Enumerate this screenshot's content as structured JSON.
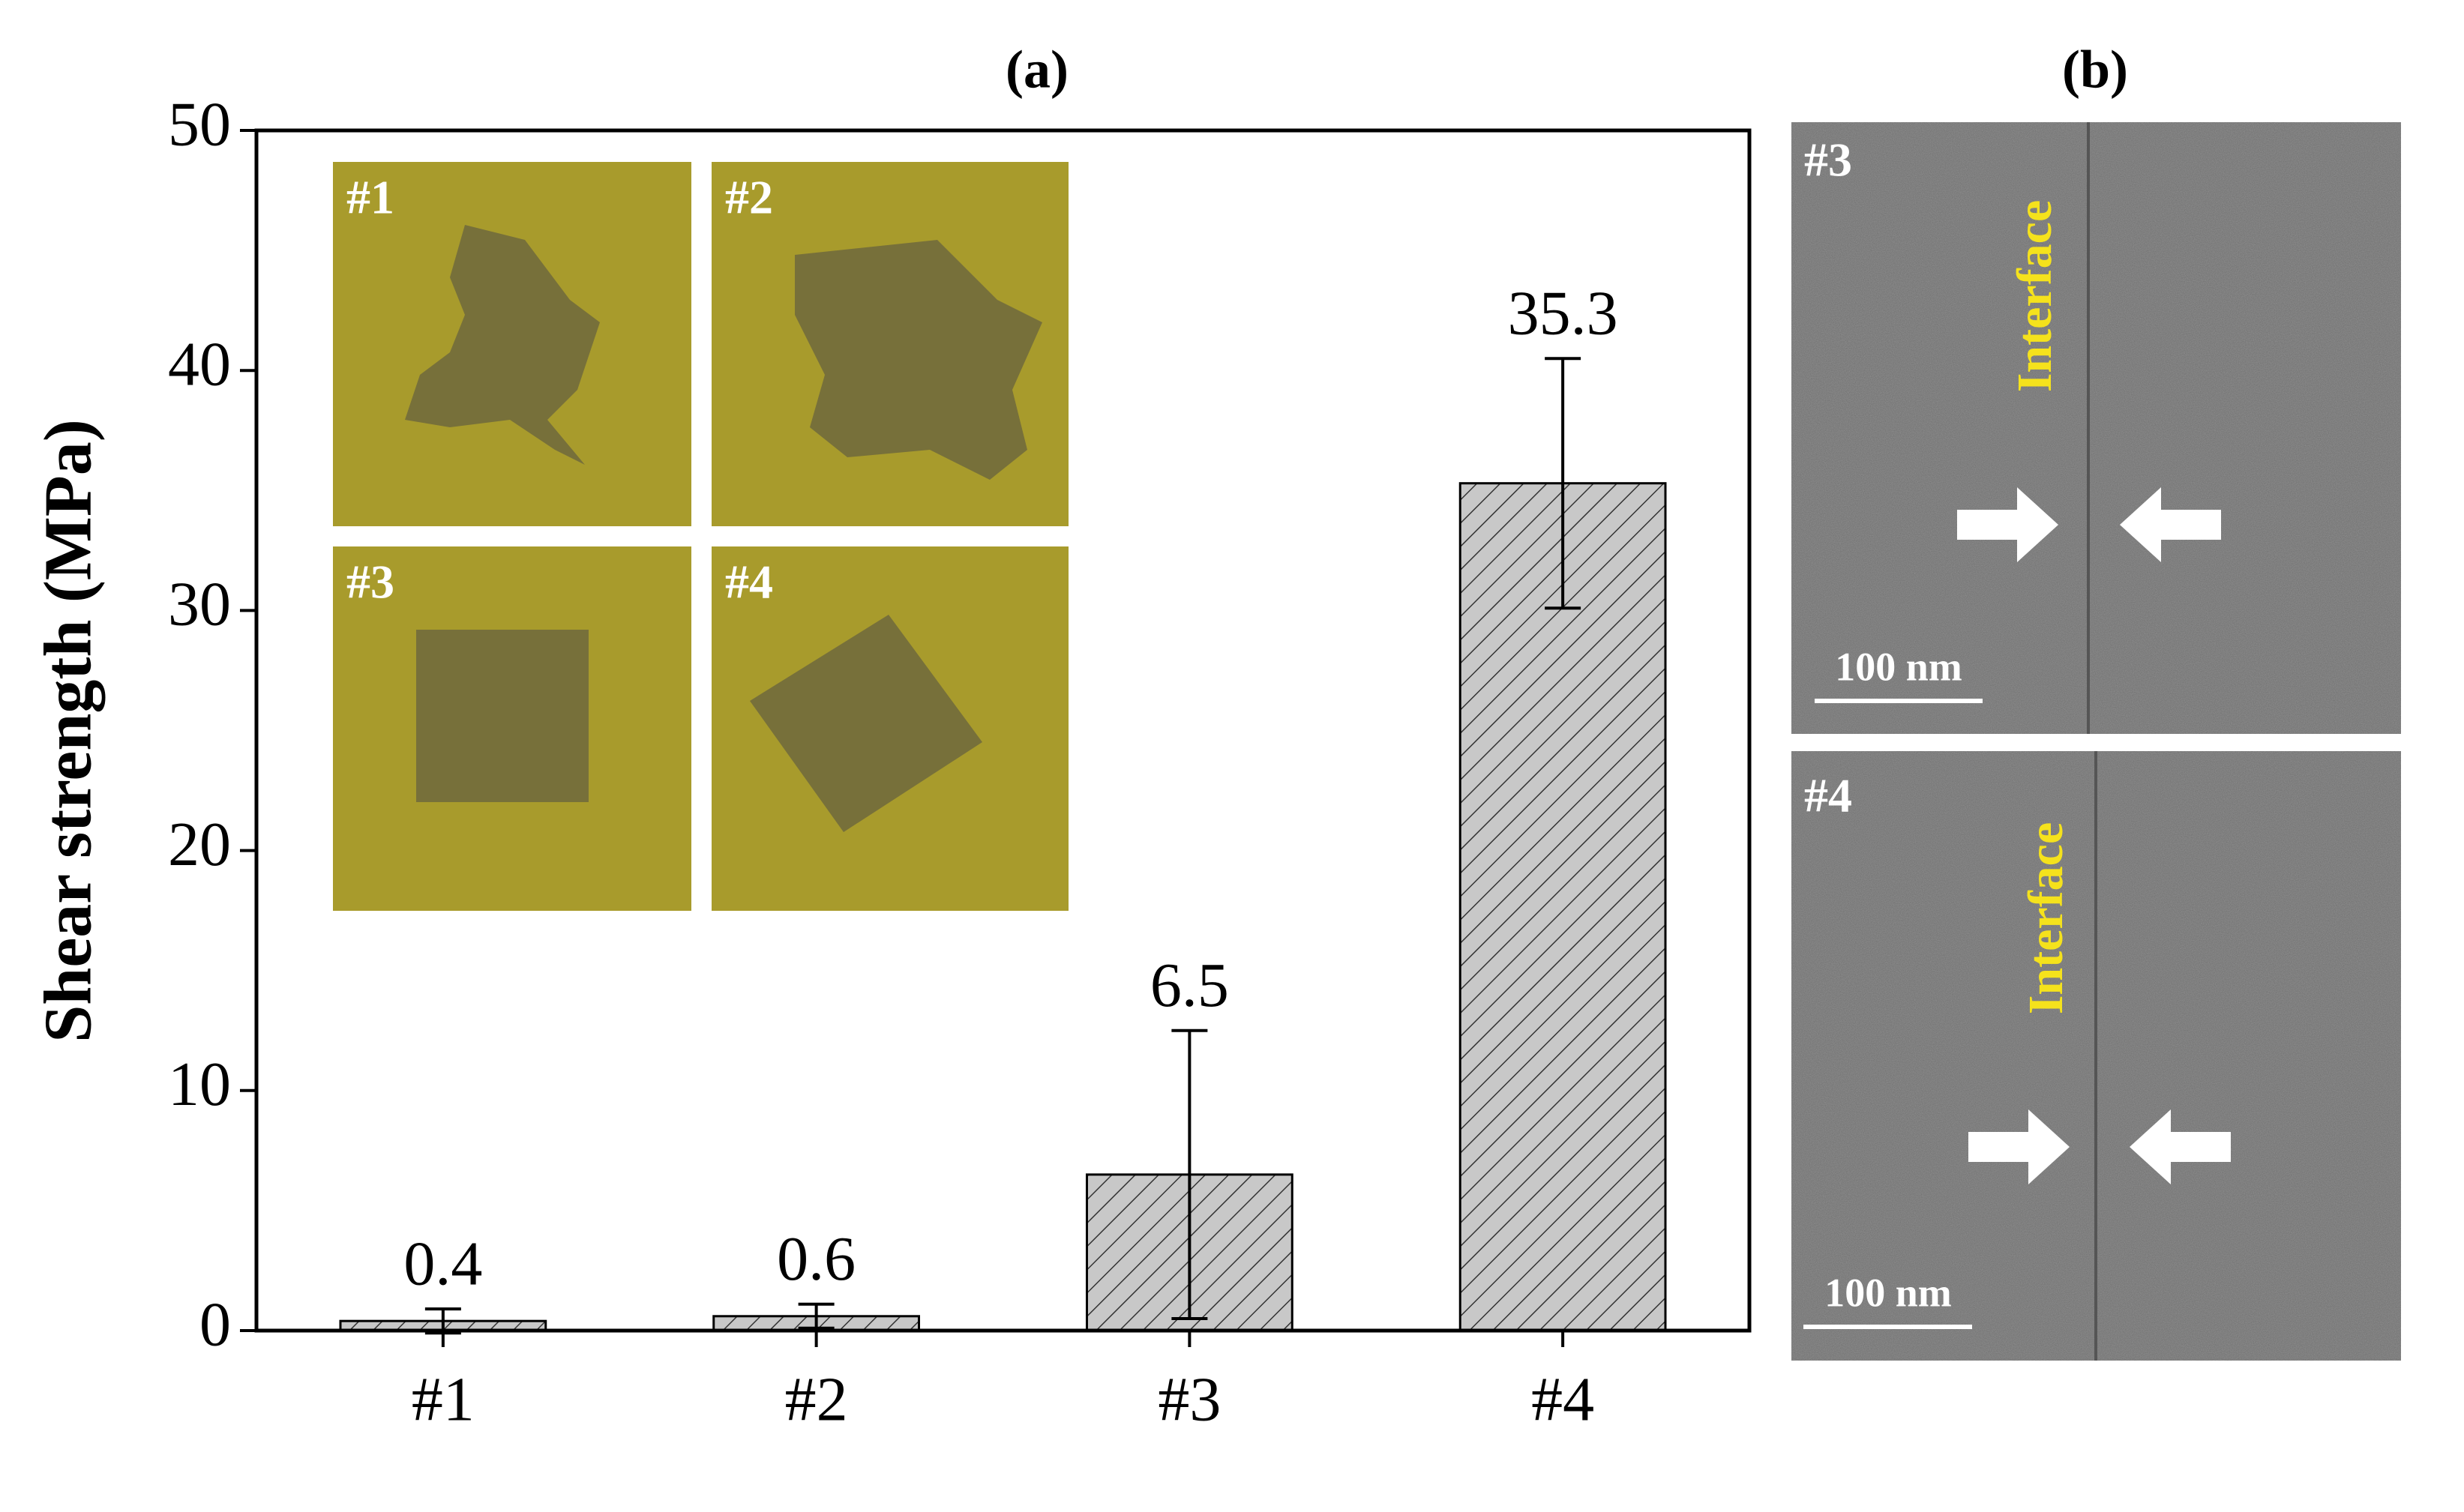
{
  "chart_data": {
    "type": "bar",
    "title": "(a)",
    "categories": [
      "#1",
      "#2",
      "#3",
      "#4"
    ],
    "values": [
      0.4,
      0.6,
      6.5,
      35.3
    ],
    "errors": [
      0.5,
      0.5,
      6.0,
      5.2
    ],
    "color": "#c8c8c8",
    "hatch": true,
    "ylabel": "Shear strength (MPa)",
    "ylim": [
      0,
      50
    ],
    "yticks": [
      0,
      10,
      20,
      30,
      40,
      50
    ],
    "insets": [
      "#1",
      "#2",
      "#3",
      "#4"
    ]
  },
  "panel_b": {
    "title": "(b)",
    "images": [
      {
        "label": "#3",
        "annotation": "Interface",
        "scale_bar": "100 nm"
      },
      {
        "label": "#4",
        "annotation": "Interface",
        "scale_bar": "100 nm"
      }
    ]
  }
}
